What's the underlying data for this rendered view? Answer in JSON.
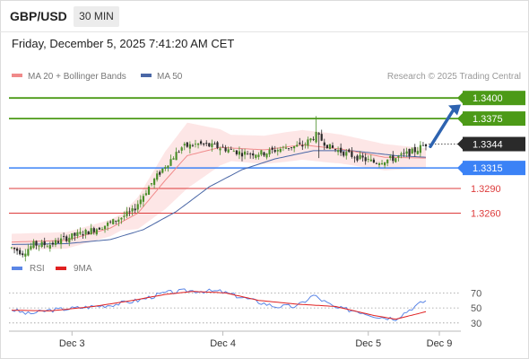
{
  "header": {
    "symbol": "GBP/USD",
    "timeframe": "30 MIN",
    "datetime": "Friday, December 5, 2025 7:41:20 AM CET"
  },
  "legend": {
    "ma20": "MA 20 + Bollinger Bands",
    "ma50": "MA 50",
    "credit": "Research © 2025 Trading Central"
  },
  "rsi_legend": {
    "rsi": "RSI",
    "ma9": "9MA"
  },
  "colors": {
    "green": "#4c9a17",
    "blue": "#3b82f6",
    "red": "#dd3b3b",
    "ma20": "#f08a8a",
    "ma50": "#4a67a6",
    "band_fill": "#fde2e2",
    "candle_up": "#4b8f2a",
    "candle_down": "#2a2a2a",
    "current": "#2a2a2a",
    "arrow": "#2d63b0",
    "rsi": "#5b86e6",
    "rsi_ma": "#e02020"
  },
  "chart_data": [
    {
      "type": "candlestick",
      "symbol": "GBP/USD",
      "x_tick_labels": [
        "Dec 3",
        "Dec 4",
        "Dec 5",
        "Dec 9"
      ],
      "y_range": [
        1.3205,
        1.341
      ],
      "price_levels": [
        {
          "label": "1.3400",
          "value": 1.34,
          "kind": "resistance",
          "color": "#4c9a17"
        },
        {
          "label": "1.3375",
          "value": 1.3375,
          "kind": "resistance",
          "color": "#4c9a17"
        },
        {
          "label": "1.3344",
          "value": 1.3344,
          "kind": "current",
          "color": "#2a2a2a"
        },
        {
          "label": "1.3315",
          "value": 1.3315,
          "kind": "pivot",
          "color": "#3b82f6"
        },
        {
          "label": "1.3290",
          "value": 1.329,
          "kind": "support",
          "color": "#dd3b3b"
        },
        {
          "label": "1.3260",
          "value": 1.326,
          "kind": "support",
          "color": "#dd3b3b"
        }
      ],
      "close_path": [
        {
          "i": 0,
          "v": 1.3218
        },
        {
          "i": 4,
          "v": 1.3212
        },
        {
          "i": 8,
          "v": 1.3222
        },
        {
          "i": 14,
          "v": 1.3222
        },
        {
          "i": 20,
          "v": 1.323
        },
        {
          "i": 28,
          "v": 1.3238
        },
        {
          "i": 36,
          "v": 1.3248
        },
        {
          "i": 44,
          "v": 1.3262
        },
        {
          "i": 50,
          "v": 1.3292
        },
        {
          "i": 56,
          "v": 1.3318
        },
        {
          "i": 62,
          "v": 1.334
        },
        {
          "i": 68,
          "v": 1.3344
        },
        {
          "i": 76,
          "v": 1.334
        },
        {
          "i": 84,
          "v": 1.3333
        },
        {
          "i": 92,
          "v": 1.3333
        },
        {
          "i": 100,
          "v": 1.334
        },
        {
          "i": 106,
          "v": 1.3342
        },
        {
          "i": 111,
          "v": 1.3355
        },
        {
          "i": 116,
          "v": 1.334
        },
        {
          "i": 124,
          "v": 1.333
        },
        {
          "i": 132,
          "v": 1.3322
        },
        {
          "i": 140,
          "v": 1.3327
        },
        {
          "i": 147,
          "v": 1.3336
        },
        {
          "i": 151,
          "v": 1.3344
        }
      ],
      "ma20_path": [
        {
          "i": 0,
          "v": 1.3225
        },
        {
          "i": 20,
          "v": 1.3227
        },
        {
          "i": 36,
          "v": 1.3242
        },
        {
          "i": 46,
          "v": 1.326
        },
        {
          "i": 56,
          "v": 1.33
        },
        {
          "i": 64,
          "v": 1.333
        },
        {
          "i": 76,
          "v": 1.334
        },
        {
          "i": 92,
          "v": 1.3337
        },
        {
          "i": 106,
          "v": 1.3343
        },
        {
          "i": 120,
          "v": 1.3338
        },
        {
          "i": 136,
          "v": 1.3328
        },
        {
          "i": 151,
          "v": 1.3327
        }
      ],
      "ma50_path": [
        {
          "i": 0,
          "v": 1.3222
        },
        {
          "i": 20,
          "v": 1.3223
        },
        {
          "i": 36,
          "v": 1.3228
        },
        {
          "i": 48,
          "v": 1.324
        },
        {
          "i": 60,
          "v": 1.3262
        },
        {
          "i": 72,
          "v": 1.3292
        },
        {
          "i": 84,
          "v": 1.3313
        },
        {
          "i": 96,
          "v": 1.3326
        },
        {
          "i": 110,
          "v": 1.3336
        },
        {
          "i": 124,
          "v": 1.3336
        },
        {
          "i": 140,
          "v": 1.333
        },
        {
          "i": 151,
          "v": 1.3328
        }
      ],
      "band_width_path": [
        {
          "i": 0,
          "v": 0.001
        },
        {
          "i": 40,
          "v": 0.001
        },
        {
          "i": 56,
          "v": 0.0035
        },
        {
          "i": 64,
          "v": 0.004
        },
        {
          "i": 80,
          "v": 0.0016
        },
        {
          "i": 100,
          "v": 0.0018
        },
        {
          "i": 116,
          "v": 0.0018
        },
        {
          "i": 136,
          "v": 0.0016
        },
        {
          "i": 151,
          "v": 0.0012
        }
      ]
    },
    {
      "type": "line",
      "name": "RSI",
      "y_tick_labels": [
        "70",
        "50",
        "30"
      ],
      "ylim": [
        25,
        80
      ],
      "rsi_path": [
        {
          "i": 0,
          "v": 48
        },
        {
          "i": 6,
          "v": 42
        },
        {
          "i": 14,
          "v": 47
        },
        {
          "i": 24,
          "v": 50
        },
        {
          "i": 36,
          "v": 54
        },
        {
          "i": 46,
          "v": 60
        },
        {
          "i": 56,
          "v": 70
        },
        {
          "i": 64,
          "v": 73
        },
        {
          "i": 76,
          "v": 72
        },
        {
          "i": 84,
          "v": 64
        },
        {
          "i": 96,
          "v": 52
        },
        {
          "i": 104,
          "v": 52
        },
        {
          "i": 110,
          "v": 67
        },
        {
          "i": 118,
          "v": 50
        },
        {
          "i": 126,
          "v": 46
        },
        {
          "i": 134,
          "v": 38
        },
        {
          "i": 140,
          "v": 36
        },
        {
          "i": 146,
          "v": 50
        },
        {
          "i": 151,
          "v": 60
        }
      ],
      "ma9_path": [
        {
          "i": 0,
          "v": 47
        },
        {
          "i": 14,
          "v": 46
        },
        {
          "i": 30,
          "v": 52
        },
        {
          "i": 44,
          "v": 60
        },
        {
          "i": 56,
          "v": 68
        },
        {
          "i": 66,
          "v": 72
        },
        {
          "i": 78,
          "v": 70
        },
        {
          "i": 90,
          "v": 60
        },
        {
          "i": 104,
          "v": 55
        },
        {
          "i": 118,
          "v": 52
        },
        {
          "i": 132,
          "v": 40
        },
        {
          "i": 140,
          "v": 35
        },
        {
          "i": 151,
          "v": 45
        }
      ]
    }
  ]
}
